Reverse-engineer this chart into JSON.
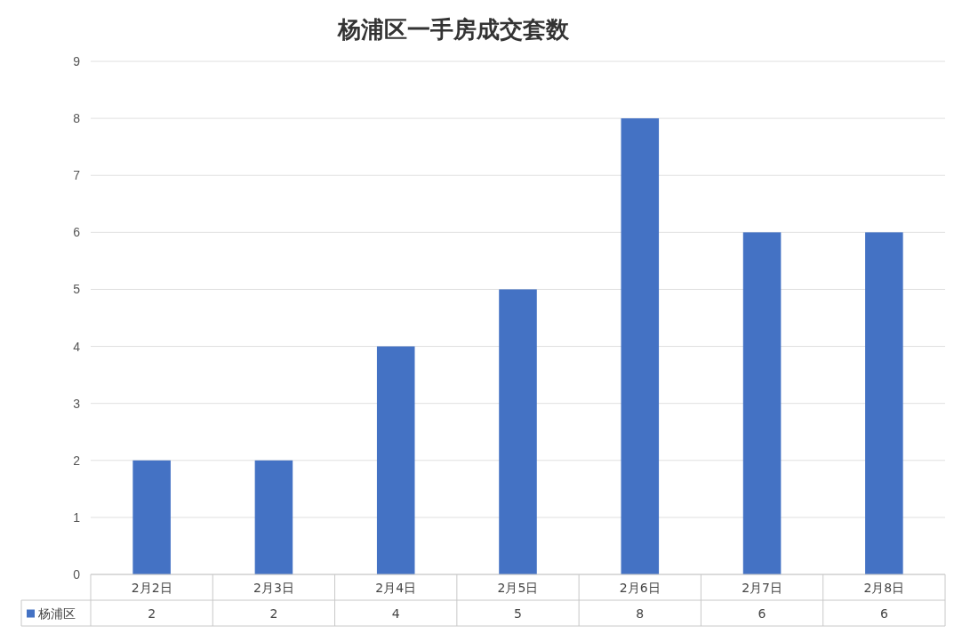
{
  "chart_data": {
    "type": "bar",
    "title": "杨浦区一手房成交套数",
    "categories": [
      "2月2日",
      "2月3日",
      "2月4日",
      "2月5日",
      "2月6日",
      "2月7日",
      "2月8日"
    ],
    "series": [
      {
        "name": "杨浦区",
        "color": "#4472c4",
        "values": [
          2,
          2,
          4,
          5,
          8,
          6,
          6
        ]
      }
    ],
    "ylim": [
      0,
      9
    ],
    "yticks": [
      0,
      1,
      2,
      3,
      4,
      5,
      6,
      7,
      8,
      9
    ],
    "grid": "y",
    "data_labels": true,
    "legend": "bottom"
  }
}
